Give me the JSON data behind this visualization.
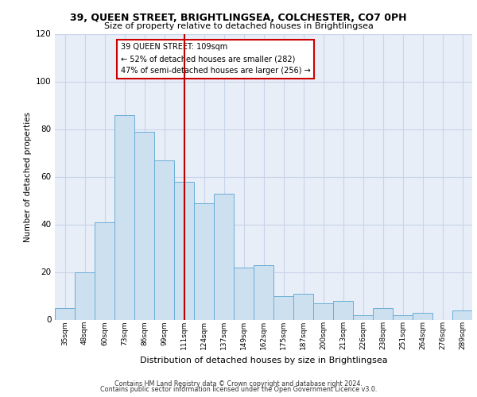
{
  "title1": "39, QUEEN STREET, BRIGHTLINGSEA, COLCHESTER, CO7 0PH",
  "title2": "Size of property relative to detached houses in Brightlingsea",
  "xlabel": "Distribution of detached houses by size in Brightlingsea",
  "ylabel": "Number of detached properties",
  "categories": [
    "35sqm",
    "48sqm",
    "60sqm",
    "73sqm",
    "86sqm",
    "99sqm",
    "111sqm",
    "124sqm",
    "137sqm",
    "149sqm",
    "162sqm",
    "175sqm",
    "187sqm",
    "200sqm",
    "213sqm",
    "226sqm",
    "238sqm",
    "251sqm",
    "264sqm",
    "276sqm",
    "289sqm"
  ],
  "values": [
    5,
    20,
    41,
    86,
    79,
    67,
    58,
    49,
    53,
    22,
    23,
    10,
    11,
    7,
    8,
    2,
    5,
    2,
    3,
    0,
    4
  ],
  "bar_color": "#cde0f0",
  "bar_edge_color": "#6aaed6",
  "marker_category_index": 6,
  "annotation_line1": "39 QUEEN STREET: 109sqm",
  "annotation_line2": "← 52% of detached houses are smaller (282)",
  "annotation_line3": "47% of semi-detached houses are larger (256) →",
  "vline_color": "#bb0000",
  "ylim": [
    0,
    120
  ],
  "yticks": [
    0,
    20,
    40,
    60,
    80,
    100,
    120
  ],
  "grid_color": "#c8d4e8",
  "bg_color": "#e8eef8",
  "footer1": "Contains HM Land Registry data © Crown copyright and database right 2024.",
  "footer2": "Contains public sector information licensed under the Open Government Licence v3.0."
}
